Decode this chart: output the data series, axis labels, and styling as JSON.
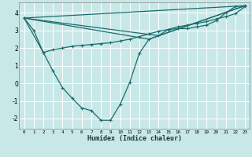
{
  "xlabel": "Humidex (Indice chaleur)",
  "bg_color": "#c8e8e8",
  "grid_color": "#ffffff",
  "line_color": "#1a6b6b",
  "xlim": [
    -0.5,
    23.5
  ],
  "ylim": [
    -2.6,
    4.6
  ],
  "xticks": [
    0,
    1,
    2,
    3,
    4,
    5,
    6,
    7,
    8,
    9,
    10,
    11,
    12,
    13,
    14,
    15,
    16,
    17,
    18,
    19,
    20,
    21,
    22,
    23
  ],
  "yticks": [
    -2,
    -1,
    0,
    1,
    2,
    3,
    4
  ],
  "curve1_x": [
    0,
    1,
    2,
    3,
    4,
    5,
    6,
    7,
    8,
    9,
    10,
    11,
    12,
    13,
    14,
    15,
    16,
    17,
    18,
    19,
    20,
    21,
    22,
    23
  ],
  "curve1_y": [
    3.7,
    3.0,
    1.75,
    0.7,
    -0.25,
    -0.85,
    -1.4,
    -1.55,
    -2.1,
    -2.1,
    -1.2,
    0.05,
    1.7,
    2.5,
    2.7,
    3.05,
    3.1,
    3.1,
    3.2,
    3.3,
    3.55,
    4.0,
    4.35,
    4.4
  ],
  "curve2_x": [
    0,
    2,
    3,
    4,
    5,
    6,
    7,
    8,
    9,
    10,
    11,
    12,
    13,
    14,
    15,
    16,
    17,
    18,
    19,
    20,
    21,
    22,
    23
  ],
  "curve2_y": [
    3.7,
    1.75,
    1.9,
    2.0,
    2.1,
    2.15,
    2.2,
    2.25,
    2.3,
    2.4,
    2.5,
    2.65,
    2.8,
    2.95,
    3.05,
    3.2,
    3.3,
    3.4,
    3.5,
    3.65,
    3.78,
    3.95,
    4.35
  ],
  "line3_x": [
    0,
    23
  ],
  "line3_y": [
    3.7,
    4.4
  ],
  "line4_x": [
    0,
    13,
    23
  ],
  "line4_y": [
    3.7,
    2.5,
    4.4
  ],
  "line5_x": [
    0,
    14,
    23
  ],
  "line5_y": [
    3.7,
    2.7,
    4.4
  ]
}
